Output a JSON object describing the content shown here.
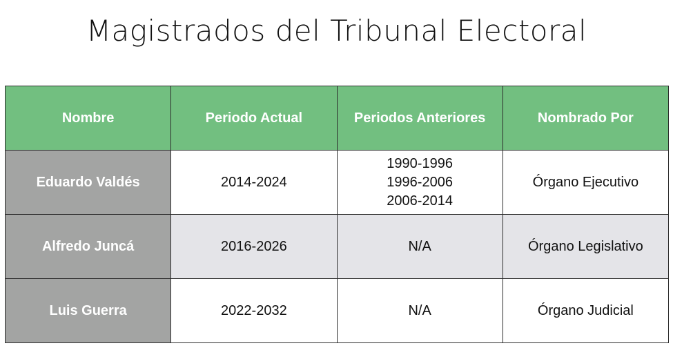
{
  "title": "Magistrados del Tribunal Electoral",
  "colors": {
    "header_bg": "#72bf80",
    "name_column_bg": "#a3a4a3",
    "alt_row_bg": "#e4e4e8"
  },
  "table": {
    "headers": [
      "Nombre",
      "Periodo Actual",
      "Periodos Anteriores",
      "Nombrado Por"
    ],
    "rows": [
      {
        "nombre": "Eduardo Valdés",
        "periodo_actual": "2014-2024",
        "periodos_anteriores": [
          "1990-1996",
          "1996-2006",
          "2006-2014"
        ],
        "nombrado_por": "Órgano Ejecutivo"
      },
      {
        "nombre": "Alfredo Juncá",
        "periodo_actual": "2016-2026",
        "periodos_anteriores": [
          "N/A"
        ],
        "nombrado_por": "Órgano Legislativo"
      },
      {
        "nombre": "Luis Guerra",
        "periodo_actual": "2022-2032",
        "periodos_anteriores": [
          "N/A"
        ],
        "nombrado_por": "Órgano Judicial"
      }
    ]
  }
}
